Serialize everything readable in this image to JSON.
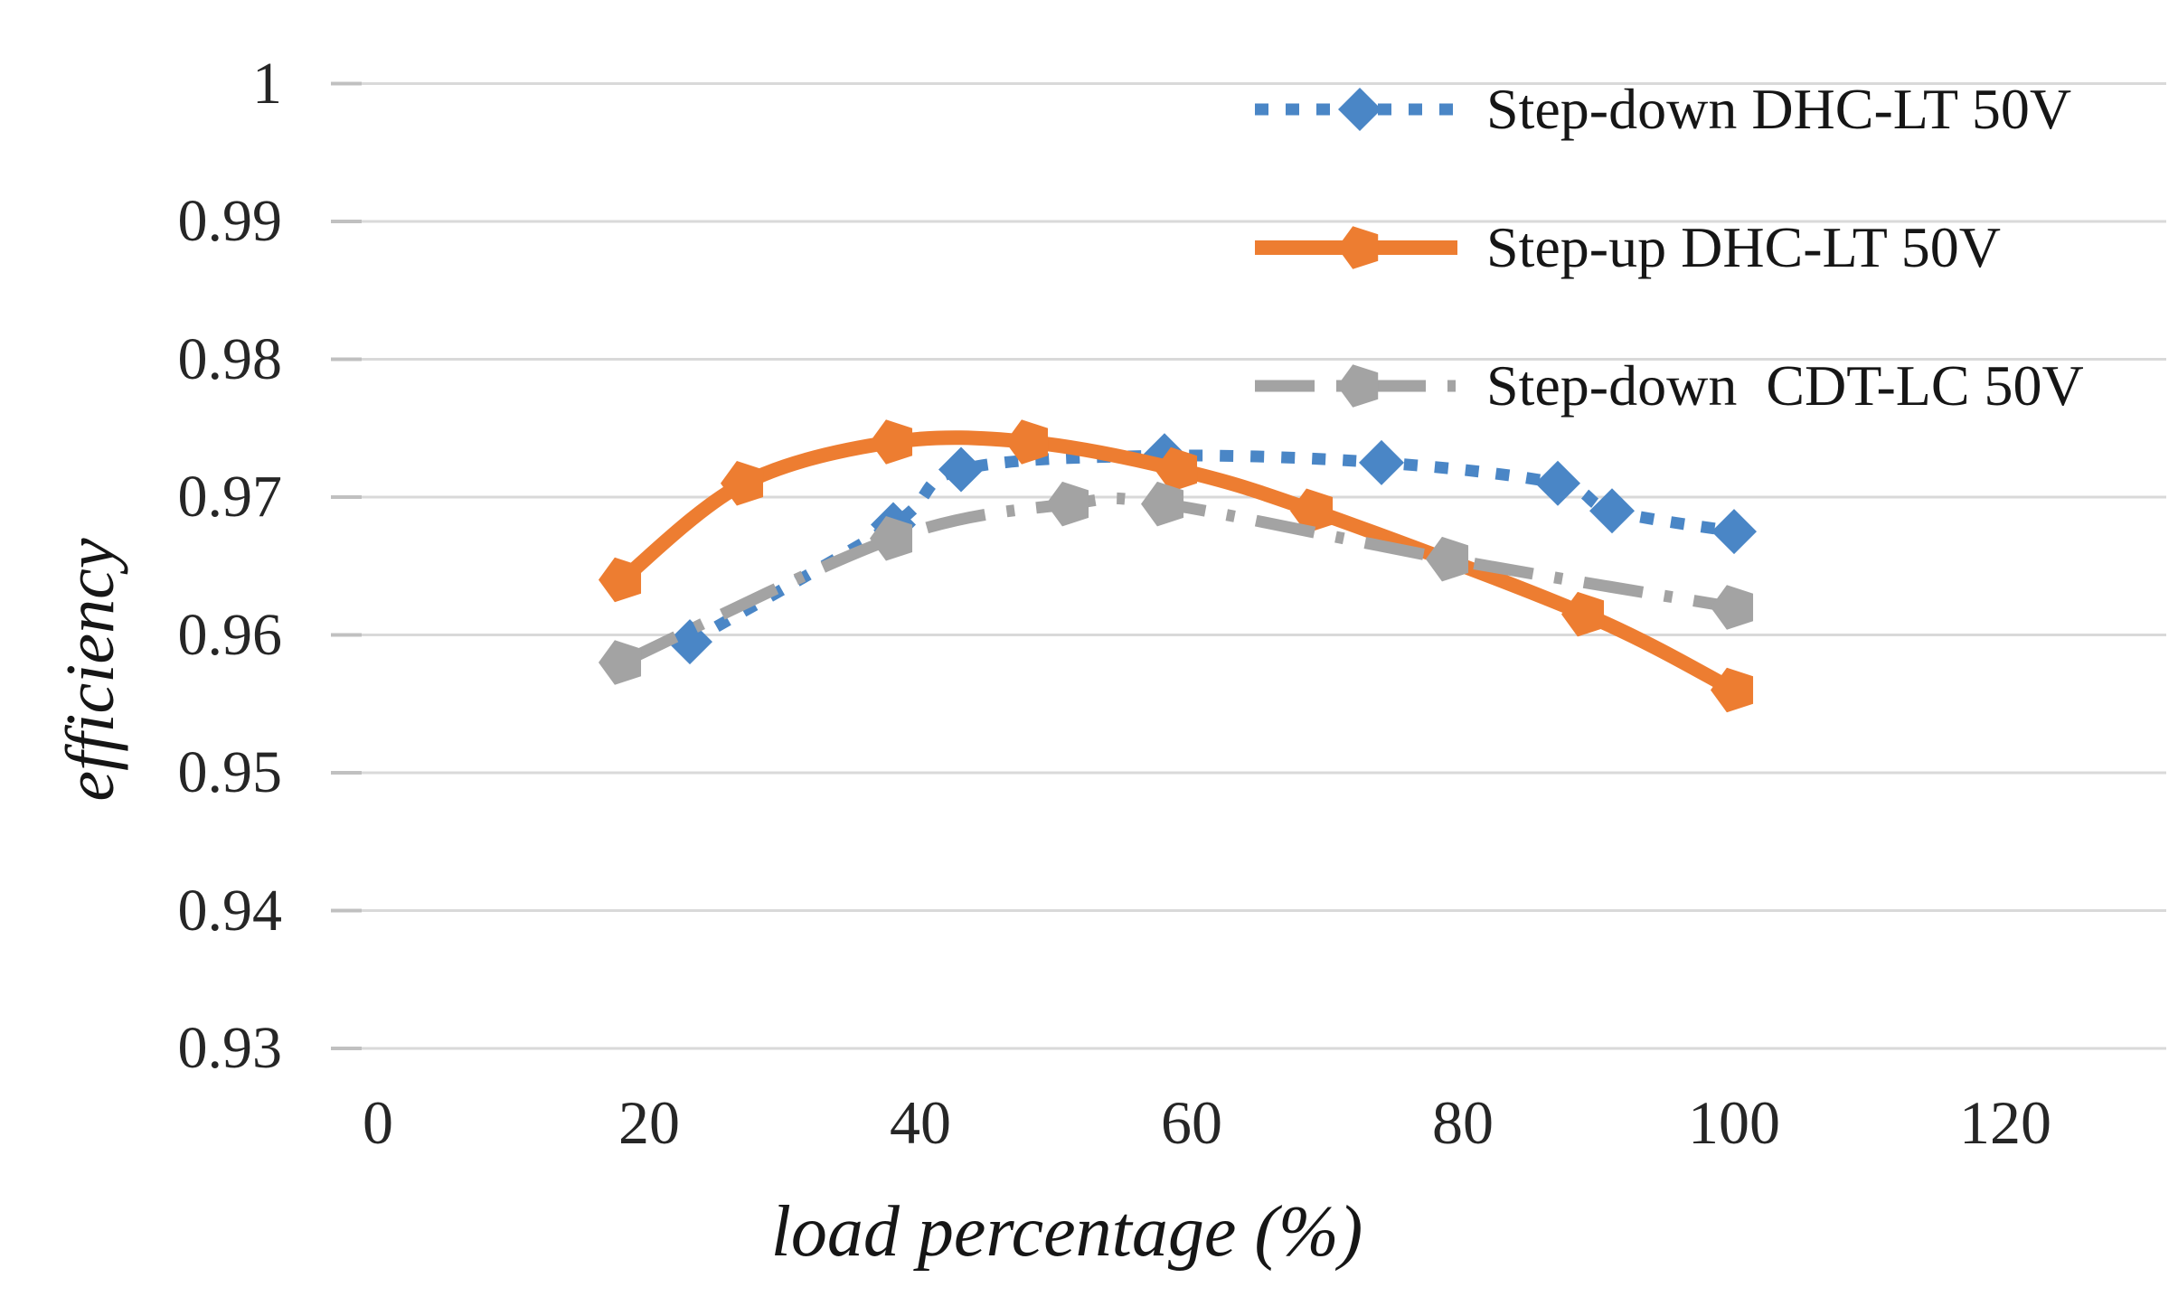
{
  "chart_data": {
    "type": "line",
    "title": "",
    "xlabel": "load percentage (%)",
    "ylabel": "efficiency",
    "xlim": [
      0,
      120
    ],
    "ylim": [
      0.93,
      1.0
    ],
    "x_ticks": [
      0,
      20,
      40,
      60,
      80,
      100,
      120
    ],
    "x_tick_labels": [
      "0",
      "20",
      "40",
      "60",
      "80",
      "100",
      "120"
    ],
    "y_ticks": [
      1.0,
      0.99,
      0.98,
      0.97,
      0.96,
      0.95,
      0.94,
      0.93
    ],
    "y_tick_labels": [
      "1",
      "0.99",
      "0.98",
      "0.97",
      "0.96",
      "0.95",
      "0.94",
      "0.93"
    ],
    "grid": "horizontal gridlines on",
    "legend_position": "top-right inside plot",
    "background_color": "#ffffff",
    "gridline_color": "#d9d9d9",
    "tick_mark_color": "#c0c0c0",
    "text_color": "#1f1f1f",
    "series": [
      {
        "name": "Step-down DHC-LT 50V",
        "color": "#4a86c6",
        "line_style": "dotted",
        "marker": "diamond",
        "points": [
          [
            23,
            0.9595
          ],
          [
            38,
            0.968
          ],
          [
            43,
            0.972
          ],
          [
            58,
            0.973
          ],
          [
            74,
            0.9725
          ],
          [
            87,
            0.971
          ],
          [
            91,
            0.969
          ],
          [
            100,
            0.9675
          ]
        ]
      },
      {
        "name": "Step-up DHC-LT 50V",
        "color": "#ed7d31",
        "line_style": "solid",
        "marker": "pentagon",
        "points": [
          [
            18,
            0.964
          ],
          [
            27,
            0.971
          ],
          [
            38,
            0.974
          ],
          [
            48,
            0.974
          ],
          [
            59,
            0.972
          ],
          [
            69,
            0.969
          ],
          [
            89,
            0.9615
          ],
          [
            100,
            0.956
          ]
        ]
      },
      {
        "name": "Step-down  CDT-LC 50V",
        "color": "#a3a3a3",
        "line_style": "dash-dot",
        "marker": "pentagon",
        "points": [
          [
            18,
            0.958
          ],
          [
            38,
            0.967
          ],
          [
            51,
            0.9695
          ],
          [
            58,
            0.9695
          ],
          [
            79,
            0.9655
          ],
          [
            100,
            0.962
          ]
        ]
      }
    ]
  }
}
